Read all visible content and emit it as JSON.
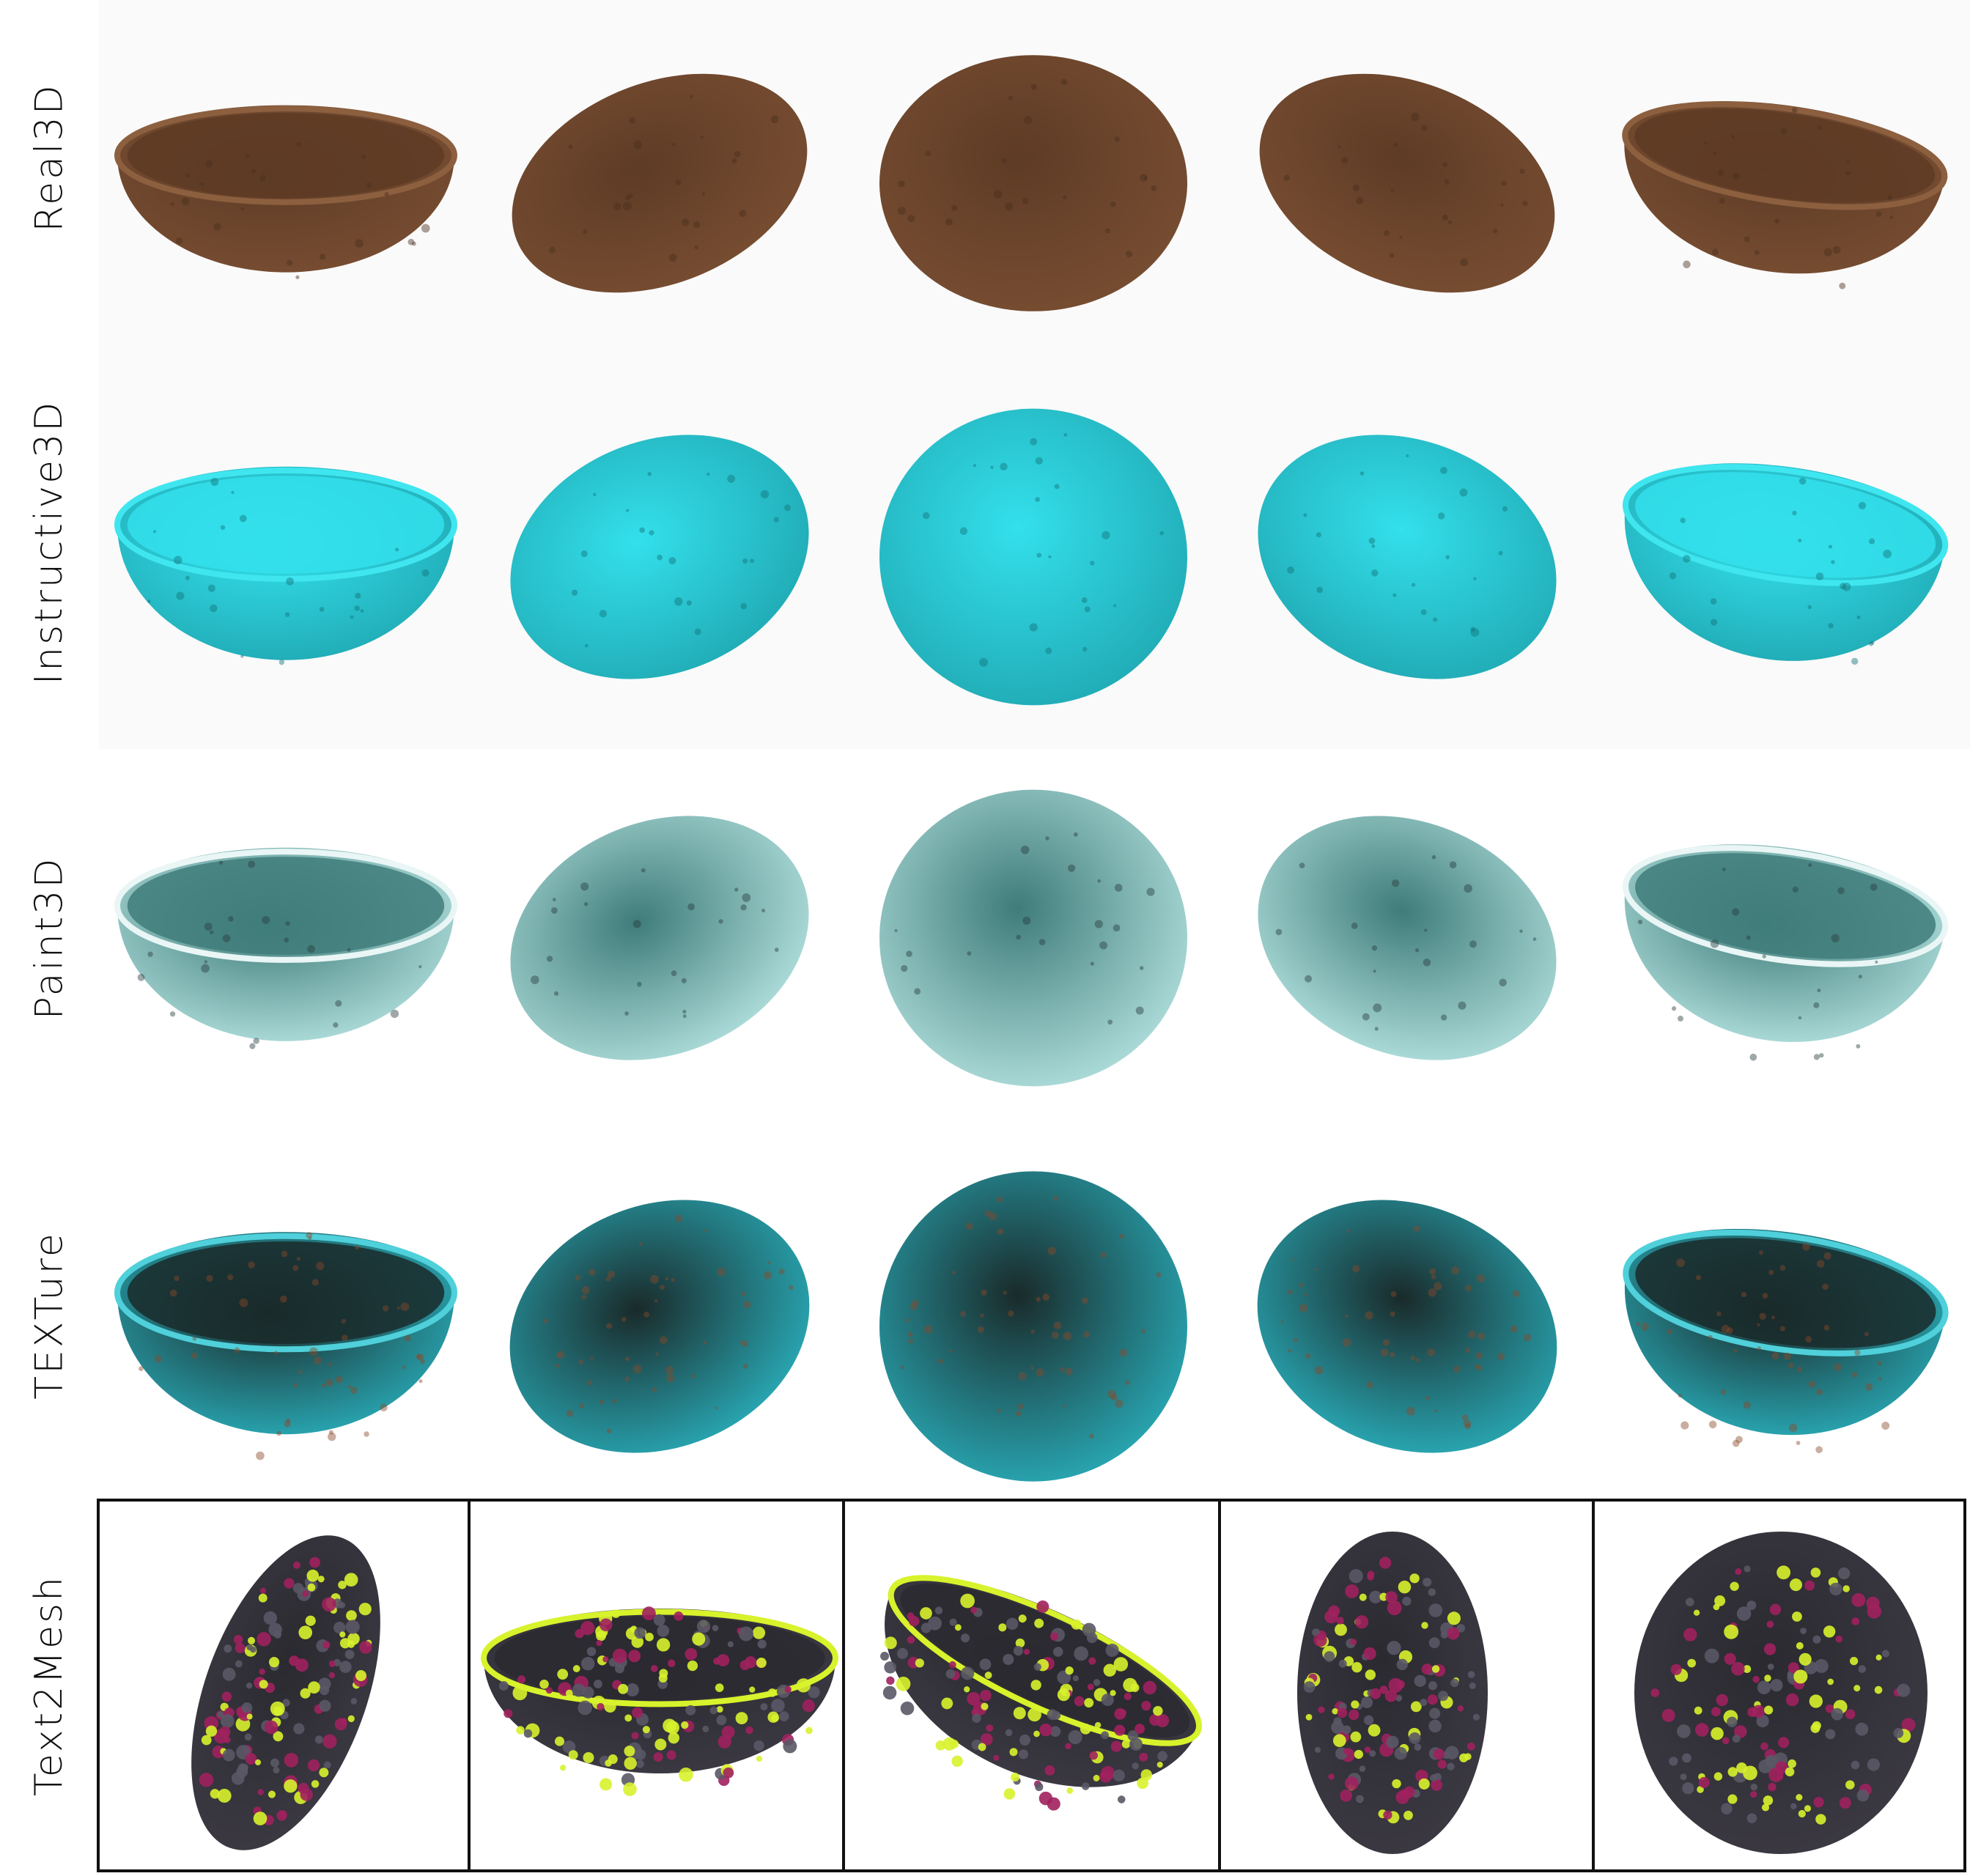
{
  "rows": [
    {
      "label": "Real3D",
      "style": "clay",
      "colors": {
        "body": "#7a4f33",
        "inner": "#5e3b25",
        "rim": "#8c5f3f",
        "spot": "#4a2e1c"
      }
    },
    {
      "label": "Instructive3D",
      "style": "cyan",
      "colors": {
        "body": "#1fa6b0",
        "inner": "#33e0ec",
        "rim": "#3fe6ef",
        "spot": "#12737b"
      }
    },
    {
      "label": "Paint3D",
      "style": "pale",
      "colors": {
        "body": "#b9e7e4",
        "inner": "#3f7c7a",
        "rim": "#e9f6f5",
        "spot": "#2a3d40"
      }
    },
    {
      "label": "TEXTure",
      "style": "turq",
      "colors": {
        "body": "#2ab5c2",
        "inner": "#1a2a2a",
        "rim": "#4fd0da",
        "spot": "#8a4a2a"
      }
    },
    {
      "label": "Text2Mesh",
      "style": "noise",
      "colors": {
        "body": "#3d3a44",
        "inner": "#2a2a30",
        "rim": "#d8f22c",
        "spot": "#a0215e"
      }
    }
  ],
  "bowl_icons": [
    "bowl-front-icon",
    "bowl-tilted-left-icon",
    "bowl-top-icon",
    "bowl-tilted-right-icon",
    "bowl-three-quarter-icon"
  ]
}
